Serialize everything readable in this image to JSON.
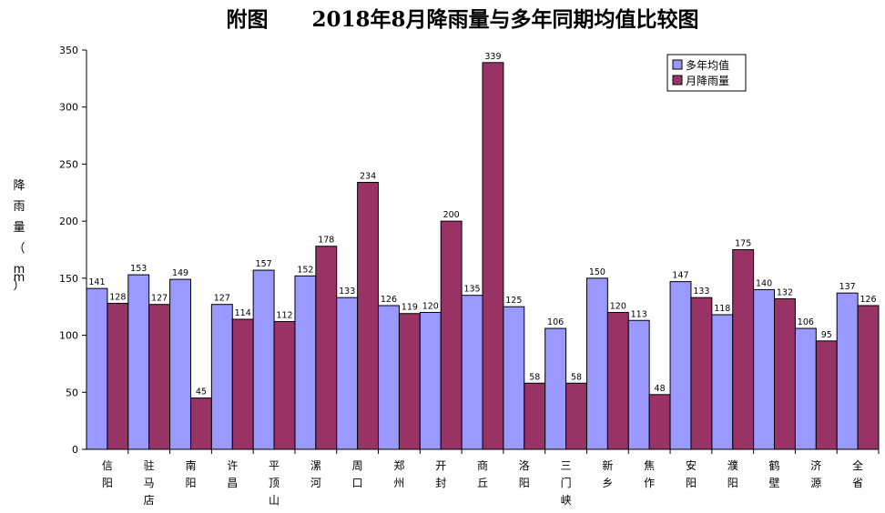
{
  "chart_data": {
    "type": "bar",
    "title": "附图      2018年8月降雨量与多年同期均值比较图",
    "ylabel": "降雨量（mm）",
    "ylim": [
      0,
      350
    ],
    "yticks": [
      0,
      50,
      100,
      150,
      200,
      250,
      300,
      350
    ],
    "grid": false,
    "legend_position": "top-right",
    "categories": [
      "信阳",
      "驻马店",
      "南阳",
      "许昌",
      "平顶山",
      "漯河",
      "周口",
      "郑州",
      "开封",
      "商丘",
      "洛阳",
      "三门峡",
      "新乡",
      "焦作",
      "安阳",
      "濮阳",
      "鹤壁",
      "济源",
      "全省"
    ],
    "series": [
      {
        "name": "多年均值",
        "color": "#9999FF",
        "values": [
          141,
          153,
          149,
          127,
          157,
          152,
          133,
          126,
          120,
          135,
          125,
          106,
          150,
          113,
          147,
          118,
          140,
          106,
          137
        ]
      },
      {
        "name": "月降雨量",
        "color": "#993366",
        "values": [
          128,
          127,
          45,
          114,
          112,
          178,
          234,
          119,
          200,
          339,
          58,
          58,
          120,
          48,
          133,
          175,
          132,
          95,
          126
        ]
      }
    ]
  }
}
